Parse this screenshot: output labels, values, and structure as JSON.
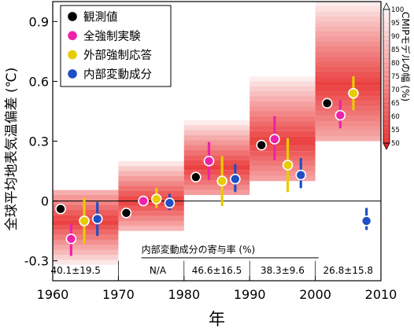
{
  "chart_data": {
    "type": "scatter",
    "xlabel": "年",
    "ylabel": "全球平均地表気温偏差 (℃)",
    "xlim": [
      1960,
      2010
    ],
    "ylim": [
      -0.4,
      1.0
    ],
    "x_ticks": [
      "1960",
      "1970",
      "1980",
      "1990",
      "2000",
      "2010"
    ],
    "y_ticks": [
      "-0.3",
      "0",
      "0.3",
      "0.6",
      "0.9"
    ],
    "legend": {
      "placement": "top-left",
      "entries": [
        {
          "label": "観測値",
          "color": "#000000"
        },
        {
          "label": "全強制実験",
          "color": "#ee22aa"
        },
        {
          "label": "外部強制応答",
          "color": "#e8cc00"
        },
        {
          "label": "内部変動成分",
          "color": "#1f4fc4"
        }
      ]
    },
    "colorbar": {
      "label": "CMIPモデルの幅 (%)",
      "ticks": [
        "100",
        "95",
        "90",
        "85",
        "80",
        "75",
        "70",
        "65",
        "60",
        "55",
        "50"
      ],
      "min": 50,
      "max": 100
    },
    "decades": [
      {
        "start": 1960,
        "end": 1970,
        "center": -0.1,
        "lo": -0.32,
        "hi": 0.05,
        "series": {
          "obs": {
            "x": 1961.2,
            "y": -0.04
          },
          "all": {
            "x": 1962.8,
            "y": -0.19,
            "lo": -0.27,
            "hi": -0.12
          },
          "ext": {
            "x": 1964.8,
            "y": -0.1,
            "lo": -0.21,
            "hi": 0.01
          },
          "int": {
            "x": 1966.8,
            "y": -0.09,
            "lo": -0.17,
            "hi": -0.01
          }
        }
      },
      {
        "start": 1970,
        "end": 1980,
        "center": 0.0,
        "lo": -0.15,
        "hi": 0.2,
        "series": {
          "obs": {
            "x": 1971.2,
            "y": -0.06
          },
          "all": {
            "x": 1973.8,
            "y": 0.0,
            "lo": -0.02,
            "hi": 0.02
          },
          "ext": {
            "x": 1975.8,
            "y": 0.01,
            "lo": -0.03,
            "hi": 0.06
          },
          "int": {
            "x": 1977.8,
            "y": -0.01,
            "lo": -0.04,
            "hi": 0.03
          }
        }
      },
      {
        "start": 1980,
        "end": 1990,
        "center": 0.17,
        "lo": 0.03,
        "hi": 0.4,
        "series": {
          "obs": {
            "x": 1981.8,
            "y": 0.12
          },
          "all": {
            "x": 1983.8,
            "y": 0.2,
            "lo": 0.11,
            "hi": 0.29
          },
          "ext": {
            "x": 1985.8,
            "y": 0.1,
            "lo": -0.02,
            "hi": 0.22
          },
          "int": {
            "x": 1987.8,
            "y": 0.11,
            "lo": 0.05,
            "hi": 0.18
          }
        }
      },
      {
        "start": 1990,
        "end": 2000,
        "center": 0.3,
        "lo": 0.1,
        "hi": 0.62,
        "series": {
          "obs": {
            "x": 1991.8,
            "y": 0.28
          },
          "all": {
            "x": 1993.8,
            "y": 0.31,
            "lo": 0.21,
            "hi": 0.42
          },
          "ext": {
            "x": 1995.8,
            "y": 0.18,
            "lo": 0.05,
            "hi": 0.31
          },
          "int": {
            "x": 1997.8,
            "y": 0.13,
            "lo": 0.07,
            "hi": 0.21
          }
        }
      },
      {
        "start": 2000,
        "end": 2010,
        "center": 0.58,
        "lo": 0.3,
        "hi": 1.0,
        "series": {
          "obs": {
            "x": 2001.8,
            "y": 0.49
          },
          "all": {
            "x": 2003.8,
            "y": 0.43,
            "lo": 0.37,
            "hi": 0.5
          },
          "ext": {
            "x": 2005.8,
            "y": 0.54,
            "lo": 0.46,
            "hi": 0.62
          },
          "int": {
            "x": 2007.8,
            "y": -0.1,
            "lo": -0.14,
            "hi": -0.04
          }
        }
      }
    ],
    "contribution_table": {
      "title": "内部変動成分の寄与率 (%)",
      "values": [
        "40.1±19.5",
        "N/A",
        "46.6±16.5",
        "38.3±9.6",
        "26.8±15.8"
      ]
    }
  }
}
